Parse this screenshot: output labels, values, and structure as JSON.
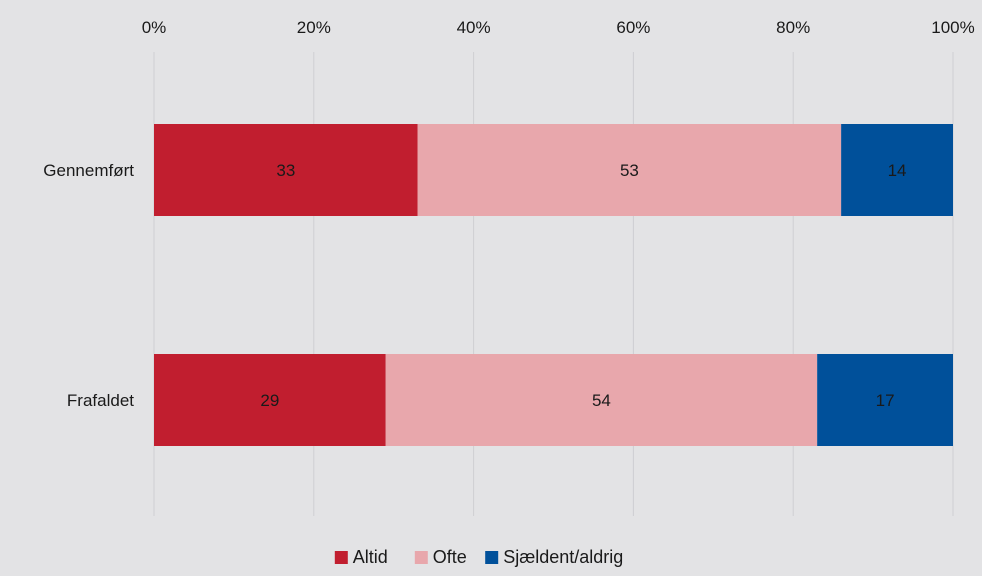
{
  "chart_data": {
    "type": "bar",
    "orientation": "horizontal",
    "stacked": true,
    "percent_axis": true,
    "categories": [
      "Gennemført",
      "Frafaldet"
    ],
    "series": [
      {
        "name": "Altid",
        "values": [
          33,
          29
        ],
        "color": "#c11e2f",
        "label_color": "#1a1a1a"
      },
      {
        "name": "Ofte",
        "values": [
          53,
          54
        ],
        "color": "#e8a7ac",
        "label_color": "#1a1a1a"
      },
      {
        "name": "Sjældent/aldrig",
        "values": [
          14,
          17
        ],
        "color": "#00509a",
        "label_color": "#1a1a1a"
      }
    ],
    "xticks": [
      "0%",
      "20%",
      "40%",
      "60%",
      "80%",
      "100%"
    ],
    "xlim": [
      0,
      100
    ],
    "x_axis_position": "top",
    "grid": true,
    "legend": "bottom"
  }
}
